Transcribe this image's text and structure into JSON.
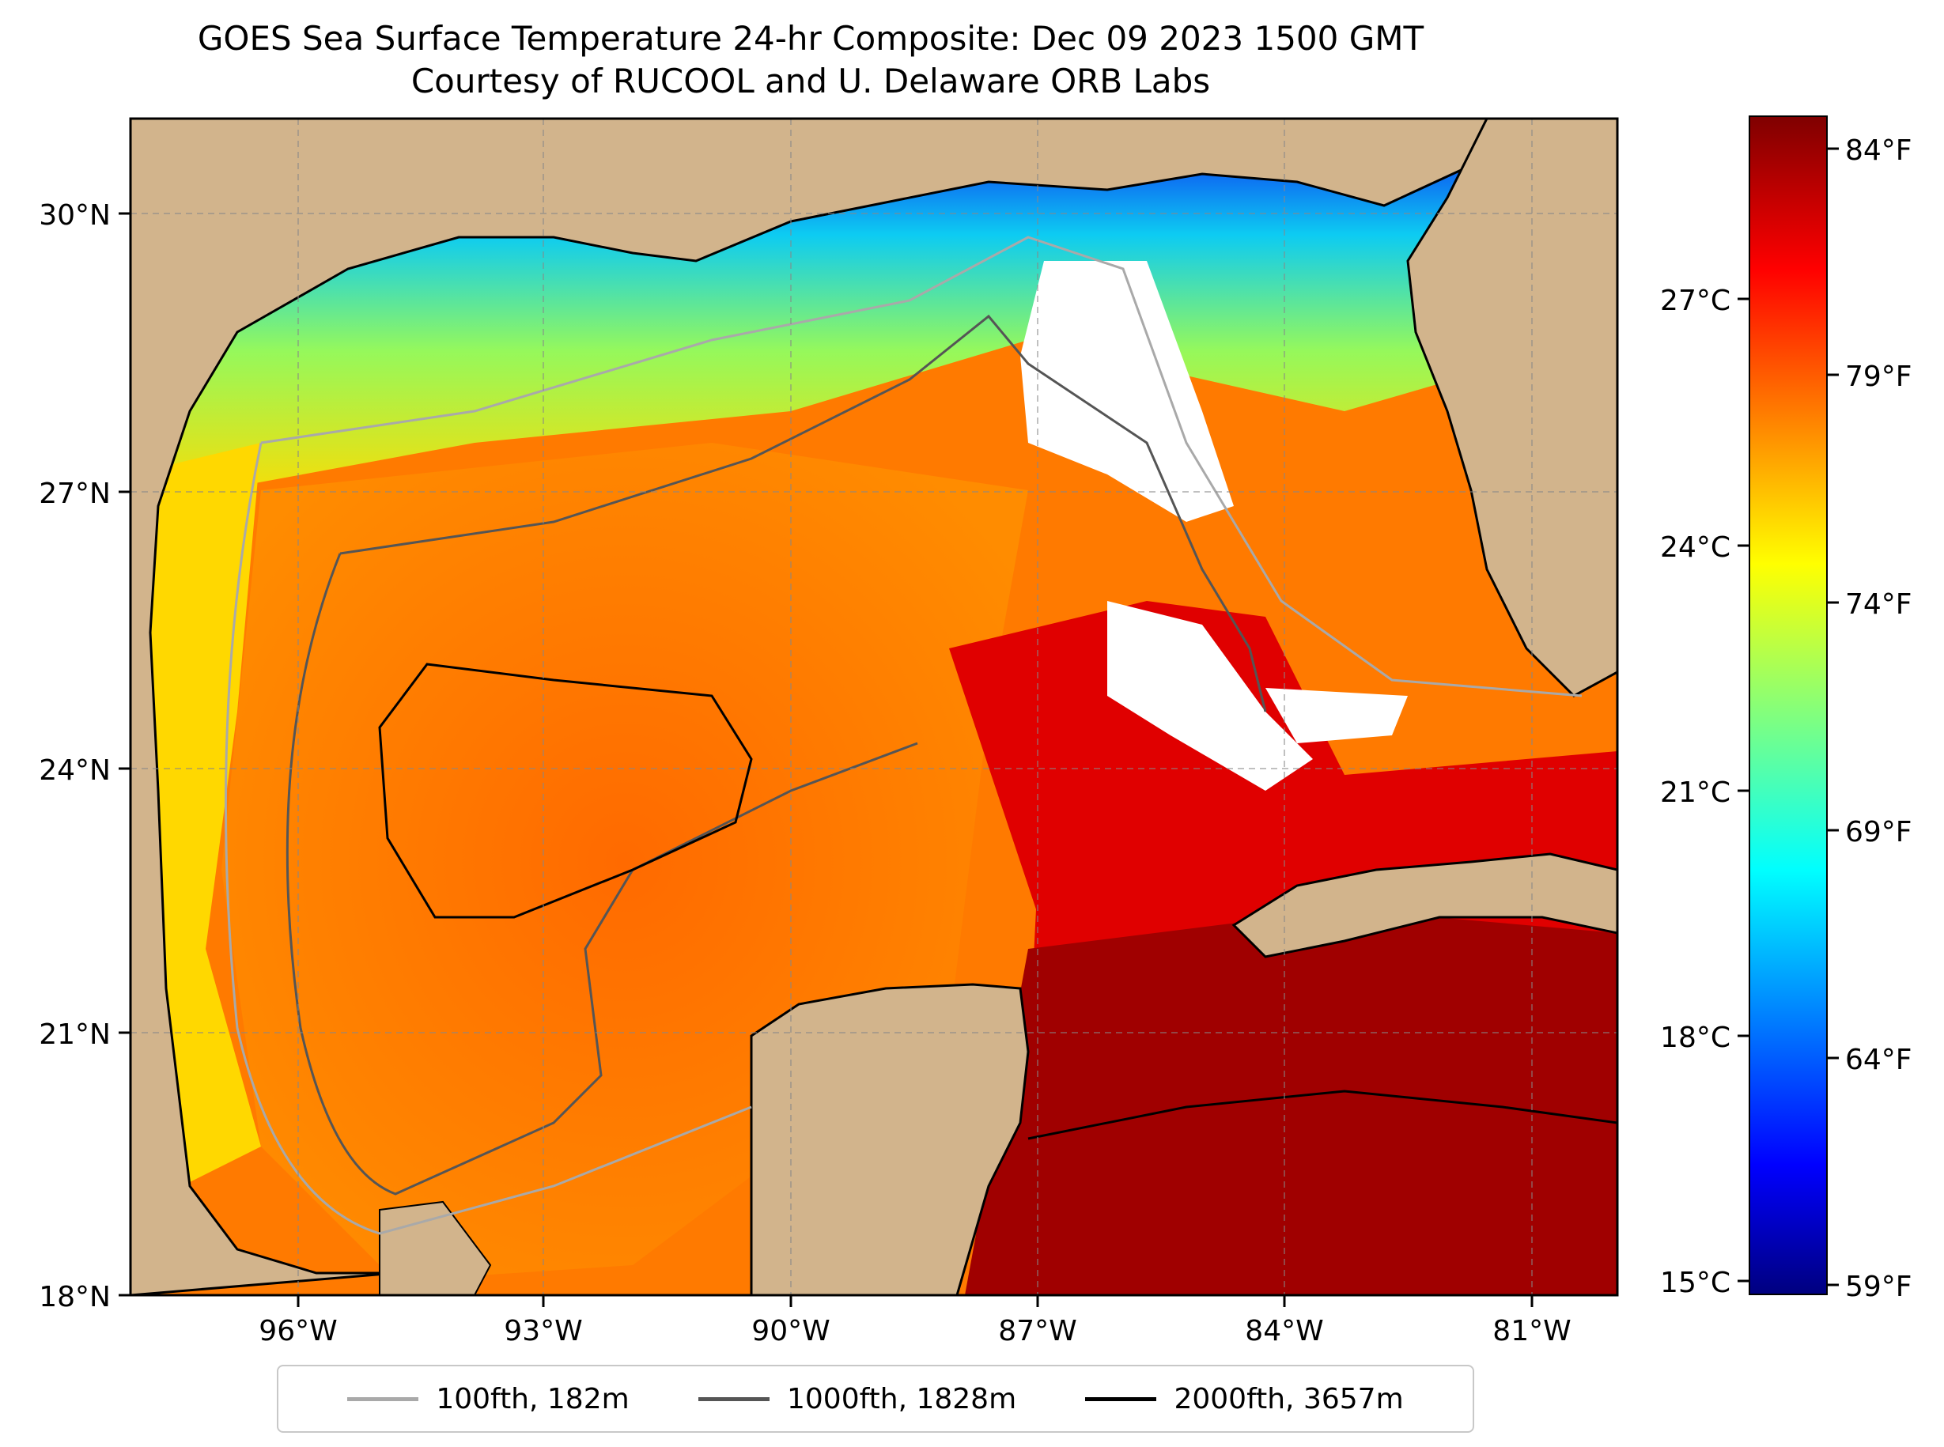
{
  "title": "GOES Sea Surface Temperature 24-hr Composite: Dec 09 2023 1500 GMT",
  "subtitle": "Courtesy of RUCOOL and U. Delaware ORB Labs",
  "map": {
    "lat_ticks": [
      "30°N",
      "27°N",
      "24°N",
      "21°N",
      "18°N"
    ],
    "lon_ticks": [
      "96°W",
      "93°W",
      "90°W",
      "87°W",
      "84°W",
      "81°W"
    ],
    "land_color": "#d2b48c",
    "no_data_color": "#ffffff"
  },
  "colorbar": {
    "colormap": "jet",
    "celsius_ticks": [
      "27°C",
      "24°C",
      "21°C",
      "18°C",
      "15°C"
    ],
    "fahrenheit_ticks": [
      "84°F",
      "79°F",
      "74°F",
      "69°F",
      "64°F",
      "59°F"
    ]
  },
  "legend": {
    "items": [
      {
        "label": "100fth, 182m",
        "color": "#a9a9a9"
      },
      {
        "label": "1000fth, 1828m",
        "color": "#555555"
      },
      {
        "label": "2000fth, 3657m",
        "color": "#000000"
      }
    ]
  }
}
